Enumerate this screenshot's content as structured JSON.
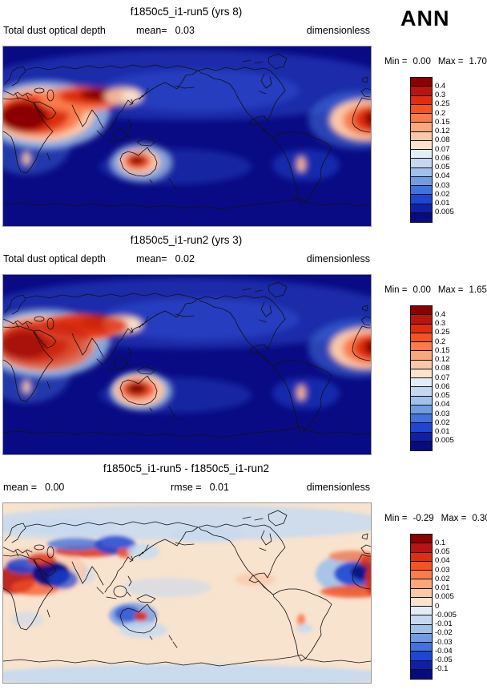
{
  "page": {
    "season": "ANN"
  },
  "colors": {
    "ocean": "#090B84",
    "diff_bg": "#F8E3CF",
    "frame": "#999999",
    "coastline": "#111111"
  },
  "palette": [
    "#8B0000",
    "#B81410",
    "#DE2D10",
    "#F55323",
    "#F97C4C",
    "#FAA77D",
    "#F9C8A9",
    "#FBE3CD",
    "#E3EDF8",
    "#C4D9F1",
    "#9FC1EA",
    "#719CE4",
    "#4272DB",
    "#1E46D3",
    "#101FA5",
    "#070B7E"
  ],
  "panels": [
    {
      "title": "f1850c5_i1-run5 (yrs 8)",
      "left_label": "Total dust optical depth",
      "stats": [
        {
          "label": "mean=",
          "value": "0.03"
        }
      ],
      "units": "dimensionless",
      "minmax": {
        "min_label": "Min =",
        "min": "0.00",
        "max_label": "Max =",
        "max": "1.70"
      },
      "colorbar_ticks": [
        "0.4",
        "0.3",
        "0.25",
        "0.2",
        "0.15",
        "0.12",
        "0.08",
        "0.07",
        "0.06",
        "0.05",
        "0.04",
        "0.03",
        "0.02",
        "0.01",
        "0.005"
      ]
    },
    {
      "title": "f1850c5_i1-run2 (yrs 3)",
      "left_label": "Total dust optical depth",
      "stats": [
        {
          "label": "mean=",
          "value": "0.02"
        }
      ],
      "units": "dimensionless",
      "minmax": {
        "min_label": "Min =",
        "min": "0.00",
        "max_label": "Max =",
        "max": "1.65"
      },
      "colorbar_ticks": [
        "0.4",
        "0.3",
        "0.25",
        "0.2",
        "0.15",
        "0.12",
        "0.08",
        "0.07",
        "0.06",
        "0.05",
        "0.04",
        "0.03",
        "0.02",
        "0.01",
        "0.005"
      ]
    },
    {
      "title": "f1850c5_i1-run5 - f1850c5_i1-run2",
      "left_label": "",
      "stats": [
        {
          "label": "mean =",
          "value": "0.00"
        },
        {
          "label": "rmse =",
          "value": "0.01"
        }
      ],
      "units": "dimensionless",
      "minmax": {
        "min_label": "Min =",
        "min": "-0.29",
        "max_label": "Max =",
        "max": "0.30"
      },
      "colorbar_ticks": [
        "0.1",
        "0.05",
        "0.04",
        "0.03",
        "0.02",
        "0.01",
        "0.005",
        "0",
        "-0.005",
        "-0.01",
        "-0.02",
        "-0.03",
        "-0.04",
        "-0.05",
        "-0.1"
      ]
    }
  ],
  "chart_data": [
    {
      "type": "heatmap",
      "title": "f1850c5_i1-run5 (yrs 8)",
      "variable": "Total dust optical depth",
      "units": "dimensionless",
      "season": "ANN",
      "mean": 0.03,
      "min": 0.0,
      "max": 1.7,
      "contour_levels": [
        0.005,
        0.01,
        0.02,
        0.03,
        0.04,
        0.05,
        0.06,
        0.07,
        0.08,
        0.12,
        0.15,
        0.2,
        0.25,
        0.3,
        0.4
      ],
      "projection": "global cylindrical lat-lon, Pacific-centered (0E at left edge)",
      "legend_position": "right vertical labelbar, blue (low) to dark red (high)",
      "high_value_regions": [
        "Sahara / North Africa",
        "Arabian Peninsula / Middle East",
        "Central Asia - Taklamakan/Gobi belt",
        "Central Australia",
        "North Atlantic dust plume off West Africa"
      ],
      "low_value_regions": [
        "Southern oceans",
        "Tropical/South Pacific",
        "High Arctic"
      ]
    },
    {
      "type": "heatmap",
      "title": "f1850c5_i1-run2 (yrs 3)",
      "variable": "Total dust optical depth",
      "units": "dimensionless",
      "season": "ANN",
      "mean": 0.02,
      "min": 0.0,
      "max": 1.65,
      "contour_levels": [
        0.005,
        0.01,
        0.02,
        0.03,
        0.04,
        0.05,
        0.06,
        0.07,
        0.08,
        0.12,
        0.15,
        0.2,
        0.25,
        0.3,
        0.4
      ],
      "projection": "global cylindrical lat-lon, Pacific-centered (0E at left edge)",
      "legend_position": "right vertical labelbar, blue (low) to dark red (high)",
      "high_value_regions": [
        "Sahara / North Africa",
        "Arabian Peninsula / Middle East",
        "Central Asia - Taklamakan/Gobi belt",
        "Central Australia",
        "North Atlantic dust plume off West Africa"
      ],
      "low_value_regions": [
        "Southern oceans",
        "Tropical/South Pacific",
        "High Arctic"
      ]
    },
    {
      "type": "heatmap",
      "title": "f1850c5_i1-run5 - f1850c5_i1-run2",
      "variable": "Total dust optical depth difference",
      "units": "dimensionless",
      "season": "ANN",
      "mean": 0.0,
      "rmse": 0.01,
      "min": -0.29,
      "max": 0.3,
      "contour_levels": [
        -0.1,
        -0.05,
        -0.04,
        -0.03,
        -0.02,
        -0.01,
        -0.005,
        0,
        0.005,
        0.01,
        0.02,
        0.03,
        0.04,
        0.05,
        0.1
      ],
      "projection": "global cylindrical lat-lon, Pacific-centered (0E at left edge)",
      "legend_position": "right vertical labelbar, blue (negative) to dark red (positive)",
      "notable_features": [
        "Strong negative (blue) over Arabian Peninsula/Arabian Sea and North Atlantic plume core",
        "Strong positive (red) over NW Sahara and central Asia streaks",
        "Mixed red/blue dipole over Australia",
        "Weak positive cream background elsewhere",
        "Light blue over high latitudes and Antarctica"
      ]
    }
  ]
}
